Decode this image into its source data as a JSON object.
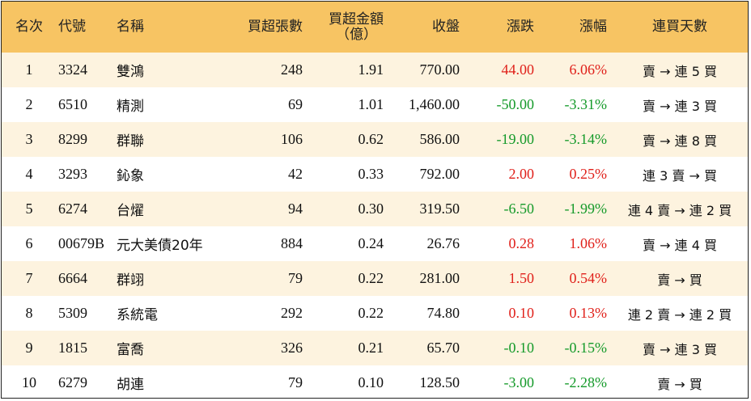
{
  "headers": {
    "rank": "名次",
    "code": "代號",
    "name": "名稱",
    "buy_lots": "買超張數",
    "buy_amount_line1": "買超金額",
    "buy_amount_line2": "（億）",
    "close": "收盤",
    "change": "漲跌",
    "pct": "漲幅",
    "streak": "連買天數"
  },
  "colors": {
    "header_bg": "#f7c463",
    "stripe_bg": "#fdf3df",
    "up": "#e0201a",
    "down": "#159a2a"
  },
  "rows": [
    {
      "rank": "1",
      "code": "3324",
      "name": "雙鴻",
      "buy_lots": "248",
      "buy_amount": "1.91",
      "close": "770.00",
      "change": "44.00",
      "pct": "6.06%",
      "streak": "賣 → 連 5 買",
      "dir": "up"
    },
    {
      "rank": "2",
      "code": "6510",
      "name": "精測",
      "buy_lots": "69",
      "buy_amount": "1.01",
      "close": "1,460.00",
      "change": "-50.00",
      "pct": "-3.31%",
      "streak": "賣 → 連 3 買",
      "dir": "down"
    },
    {
      "rank": "3",
      "code": "8299",
      "name": "群聯",
      "buy_lots": "106",
      "buy_amount": "0.62",
      "close": "586.00",
      "change": "-19.00",
      "pct": "-3.14%",
      "streak": "賣 → 連 8 買",
      "dir": "down"
    },
    {
      "rank": "4",
      "code": "3293",
      "name": "鈊象",
      "buy_lots": "42",
      "buy_amount": "0.33",
      "close": "792.00",
      "change": "2.00",
      "pct": "0.25%",
      "streak": "連 3 賣 → 買",
      "dir": "up"
    },
    {
      "rank": "5",
      "code": "6274",
      "name": "台燿",
      "buy_lots": "94",
      "buy_amount": "0.30",
      "close": "319.50",
      "change": "-6.50",
      "pct": "-1.99%",
      "streak": "連 4 賣 → 連 2 買",
      "dir": "down"
    },
    {
      "rank": "6",
      "code": "00679B",
      "name": "元大美債20年",
      "buy_lots": "884",
      "buy_amount": "0.24",
      "close": "26.76",
      "change": "0.28",
      "pct": "1.06%",
      "streak": "賣 → 連 4 買",
      "dir": "up"
    },
    {
      "rank": "7",
      "code": "6664",
      "name": "群翊",
      "buy_lots": "79",
      "buy_amount": "0.22",
      "close": "281.00",
      "change": "1.50",
      "pct": "0.54%",
      "streak": "賣 → 買",
      "dir": "up"
    },
    {
      "rank": "8",
      "code": "5309",
      "name": "系統電",
      "buy_lots": "292",
      "buy_amount": "0.22",
      "close": "74.80",
      "change": "0.10",
      "pct": "0.13%",
      "streak": "連 2 賣 → 連 2 買",
      "dir": "up"
    },
    {
      "rank": "9",
      "code": "1815",
      "name": "富喬",
      "buy_lots": "326",
      "buy_amount": "0.21",
      "close": "65.70",
      "change": "-0.10",
      "pct": "-0.15%",
      "streak": "賣 → 連 3 買",
      "dir": "down"
    },
    {
      "rank": "10",
      "code": "6279",
      "name": "胡連",
      "buy_lots": "79",
      "buy_amount": "0.10",
      "close": "128.50",
      "change": "-3.00",
      "pct": "-2.28%",
      "streak": "賣 → 買",
      "dir": "down"
    }
  ]
}
